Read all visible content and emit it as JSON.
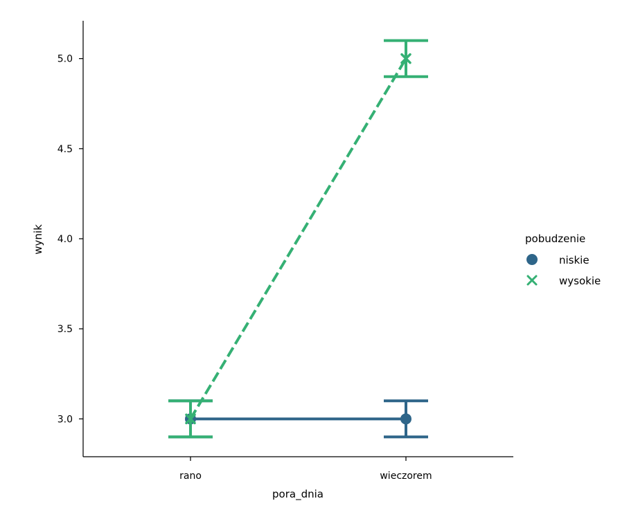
{
  "chart_data": {
    "type": "line",
    "title": "",
    "xlabel": "pora_dnia",
    "ylabel": "wynik",
    "categories": [
      "rano",
      "wieczorem"
    ],
    "ylim": [
      2.79,
      5.21
    ],
    "yticks": [
      "3.0",
      "3.5",
      "4.0",
      "4.5",
      "5.0"
    ],
    "legend": {
      "title": "pobudzenie",
      "placement": "center-right outside"
    },
    "series": [
      {
        "name": "niskie",
        "values": [
          3.0,
          3.0
        ],
        "ci_low": [
          2.9,
          2.9
        ],
        "ci_high": [
          3.1,
          3.1
        ],
        "color": "#2e6589",
        "marker": "circle",
        "linestyle": "solid"
      },
      {
        "name": "wysokie",
        "values": [
          3.0,
          5.0
        ],
        "ci_low": [
          2.9,
          4.9
        ],
        "ci_high": [
          3.1,
          5.1
        ],
        "color": "#35b074",
        "marker": "x",
        "linestyle": "dashed"
      }
    ],
    "grid": false
  }
}
